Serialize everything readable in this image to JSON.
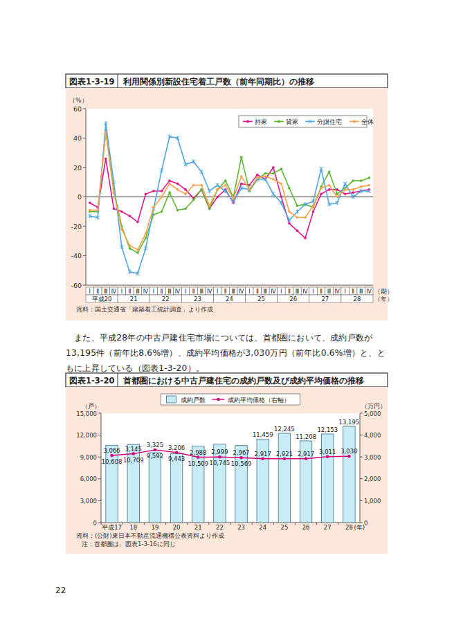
{
  "chart_data": [
    {
      "type": "line",
      "figure_number": "図表1-3-19",
      "title": "利用関係別新設住宅着工戸数（前年同期比）の推移",
      "y_label": "（%）",
      "x_label": "（期）",
      "x_group_label": "（年）",
      "categories": [
        "Ⅰ",
        "Ⅱ",
        "Ⅲ",
        "Ⅳ",
        "Ⅰ",
        "Ⅱ",
        "Ⅲ",
        "Ⅳ",
        "Ⅰ",
        "Ⅱ",
        "Ⅲ",
        "Ⅳ",
        "Ⅰ",
        "Ⅱ",
        "Ⅲ",
        "Ⅳ",
        "Ⅰ",
        "Ⅱ",
        "Ⅲ",
        "Ⅳ",
        "Ⅰ",
        "Ⅱ",
        "Ⅲ",
        "Ⅳ",
        "Ⅰ",
        "Ⅱ",
        "Ⅲ",
        "Ⅳ",
        "Ⅰ",
        "Ⅱ",
        "Ⅲ",
        "Ⅳ",
        "Ⅰ",
        "Ⅱ",
        "Ⅲ",
        "Ⅳ"
      ],
      "year_groups": [
        "平成20",
        "21",
        "22",
        "23",
        "24",
        "25",
        "26",
        "27",
        "28"
      ],
      "series": [
        {
          "name": "持家",
          "color": "#e0168c",
          "marker": "circle",
          "values": [
            -4,
            -7,
            26,
            -8,
            -10,
            -13,
            -17,
            2,
            4,
            4,
            11,
            9,
            5,
            -1,
            5,
            -8,
            0,
            5,
            -4,
            9,
            8,
            15,
            12,
            20,
            0,
            -18,
            -23,
            -28,
            -10,
            2,
            5,
            5,
            2,
            3,
            4,
            5
          ]
        },
        {
          "name": "貸家",
          "color": "#5cb82e",
          "marker": "circle",
          "values": [
            -10,
            -10,
            45,
            5,
            -20,
            -35,
            -38,
            -28,
            -12,
            -10,
            3,
            -9,
            -8,
            -2,
            5,
            -8,
            5,
            11,
            0,
            27,
            4,
            12,
            16,
            16,
            19,
            6,
            -6,
            -5,
            -7,
            7,
            17,
            2,
            6,
            11,
            11,
            13
          ]
        },
        {
          "name": "分譲住宅",
          "color": "#4da6e0",
          "marker": "asterisk",
          "values": [
            -13,
            -14,
            50,
            10,
            -34,
            -51,
            -52,
            -35,
            -8,
            18,
            41,
            40,
            22,
            24,
            17,
            4,
            8,
            4,
            -3,
            6,
            5,
            12,
            12,
            2,
            -4,
            -16,
            -10,
            -5,
            -3,
            19,
            -5,
            -4,
            9,
            0,
            4,
            4
          ]
        },
        {
          "name": "全体",
          "color": "#f5a04a",
          "marker": "circle",
          "values": [
            -9,
            -9,
            44,
            3,
            -22,
            -33,
            -36,
            -25,
            -7,
            0,
            9,
            5,
            2,
            8,
            8,
            -6,
            5,
            8,
            -1,
            14,
            5,
            13,
            14,
            12,
            9,
            -10,
            -14,
            -14,
            -6,
            6,
            8,
            0,
            5,
            5,
            7,
            8
          ]
        }
      ],
      "ylim": [
        -60,
        60
      ],
      "yticks": [
        -60,
        -40,
        -20,
        0,
        20,
        40,
        60
      ],
      "grid": false,
      "legend": "top-right",
      "source": "資料：国土交通省「建築着工統計調査」より作成"
    },
    {
      "type": "bar",
      "figure_number": "図表1-3-20",
      "title": "首都圏における中古戸建住宅の成約戸数及び成約平均価格の推移",
      "y_label": "（戸）",
      "y2_label": "（万円）",
      "x_label": "(年)",
      "categories": [
        "平成17",
        "18",
        "19",
        "20",
        "21",
        "22",
        "23",
        "24",
        "25",
        "26",
        "27",
        "28"
      ],
      "series": [
        {
          "name": "成約戸数",
          "type": "bar",
          "color": "#c8ecf6",
          "values": [
            10608,
            10709,
            9592,
            9443,
            10509,
            10745,
            10569,
            11459,
            12245,
            11208,
            12153,
            13195
          ],
          "value_labels": [
            "10,608",
            "10,709",
            "9,592",
            "9,443",
            "10,509",
            "10,745",
            "10,569",
            "11,459",
            "12,245",
            "11,208",
            "12,153",
            "13,195"
          ]
        },
        {
          "name": "成約平均価格（右軸）",
          "type": "line",
          "axis": "y2",
          "color": "#d4007a",
          "marker": "circle",
          "values": [
            3066,
            3145,
            3325,
            3206,
            2988,
            2999,
            2967,
            2917,
            2921,
            2917,
            3011,
            3030
          ],
          "value_labels": [
            "3,066",
            "3,145",
            "3,325",
            "3,206",
            "2,988",
            "2,999",
            "2,967",
            "2,917",
            "2,921",
            "2,917",
            "3,011",
            "3,030"
          ]
        }
      ],
      "ylim": [
        0,
        15000
      ],
      "yticks": [
        0,
        {
          "value": 3000,
          "label": "3,000"
        },
        {
          "value": 6000,
          "label": "6,000"
        },
        {
          "value": 9000,
          "label": "9,000"
        },
        {
          "value": 12000,
          "label": "12,000"
        },
        {
          "value": 15000,
          "label": "15,000"
        }
      ],
      "y2lim": [
        0,
        5000
      ],
      "y2ticks": [
        0,
        {
          "value": 1000,
          "label": "1,000"
        },
        {
          "value": 2000,
          "label": "2,000"
        },
        {
          "value": 3000,
          "label": "3,000"
        },
        {
          "value": 4000,
          "label": "4,000"
        },
        {
          "value": 5000,
          "label": "5,000"
        }
      ],
      "grid": false,
      "legend": "top",
      "data_labels": true,
      "source": "資料：(公財)東日本不動産流通機構公表資料より作成",
      "note": "注：首都圏は、図表1-3-16に同じ"
    }
  ],
  "body_text": "また、平成28年の中古戸建住宅市場については、首都圏において、成約戸数が13,195件（前年比8.6%増）、成約平均価格が3,030万円（前年比0.6%増）と、ともに上昇している（図表1-3-20）。",
  "page_number": "22"
}
